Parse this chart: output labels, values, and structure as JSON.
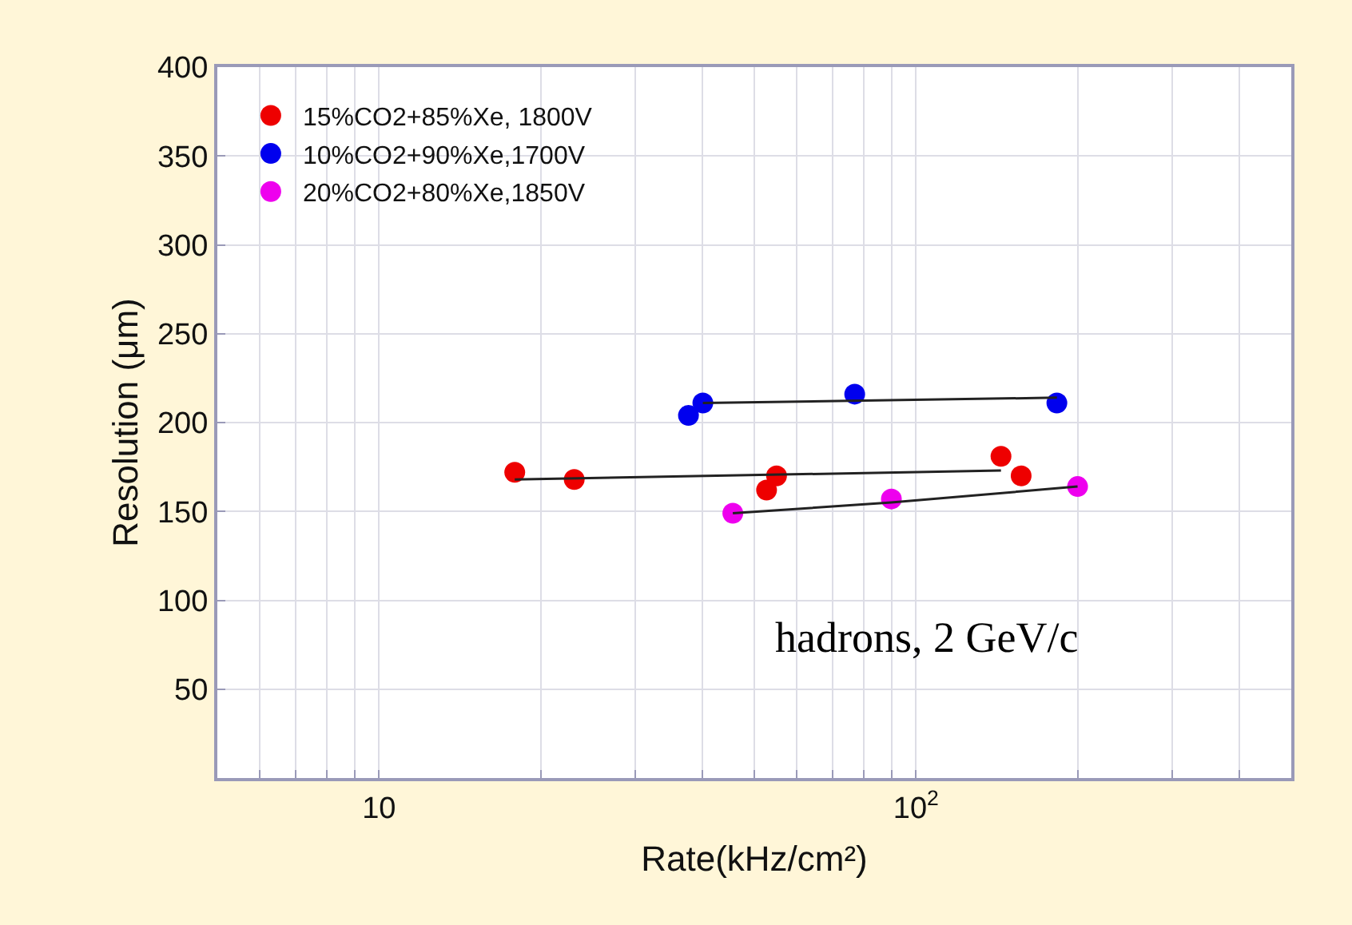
{
  "chart_data": {
    "type": "scatter",
    "xlabel": "Rate(kHz/cm²)",
    "ylabel": "Resolution (μm)",
    "log": "x",
    "grid": true,
    "legend": "top left",
    "marker": "circle",
    "xlim": [
      5,
      500
    ],
    "xticks": [
      {
        "value": 5,
        "label": null
      },
      {
        "value": 6,
        "label": null
      },
      {
        "value": 7,
        "label": null
      },
      {
        "value": 8,
        "label": null
      },
      {
        "value": 9,
        "label": null
      },
      10,
      {
        "value": 20,
        "label": null
      },
      {
        "value": 30,
        "label": null
      },
      {
        "value": 40,
        "label": null
      },
      {
        "value": 50,
        "label": null
      },
      {
        "value": 60,
        "label": null
      },
      {
        "value": 70,
        "label": null
      },
      {
        "value": 80,
        "label": null
      },
      {
        "value": 90,
        "label": null
      },
      {
        "value": 100,
        "label": "10$^{2}$"
      },
      {
        "value": 200,
        "label": null
      },
      {
        "value": 300,
        "label": null
      },
      {
        "value": 400,
        "label": null
      }
    ],
    "ylim": [
      0,
      400
    ],
    "yticks": [
      50,
      100,
      150,
      200,
      250,
      300,
      350,
      400
    ],
    "series": [
      {
        "name": "15%CO2+85%Xe, 1800V",
        "color": "#ee0000",
        "x": [
          17.9,
          23.1,
          52.7,
          55,
          144,
          157
        ],
        "values": [
          172,
          168,
          162,
          170,
          181,
          170
        ]
      },
      {
        "name": "10%CO2+90%Xe,1700V",
        "color": "#0000ee",
        "x": [
          37.7,
          40.1,
          76.9,
          183
        ],
        "values": [
          204,
          211,
          216,
          211
        ]
      },
      {
        "name": "20%CO2+80%Xe,1850V",
        "color": "#ee00ee",
        "x": [
          45.6,
          90,
          200
        ],
        "values": [
          149,
          157,
          164
        ]
      },
      {
        "type": "line",
        "color": "#222222",
        "marker": "none",
        "x": [
          17.9,
          144
        ],
        "values": [
          168,
          173
        ]
      },
      {
        "type": "line",
        "color": "#222222",
        "marker": "none",
        "x": [
          40.1,
          183
        ],
        "values": [
          211,
          214
        ]
      },
      {
        "type": "line",
        "color": "#222222",
        "marker": "none",
        "x": [
          45.6,
          90,
          200
        ],
        "values": [
          149,
          155,
          164
        ]
      }
    ],
    "annotations": [
      "hadrons, 2 GeV/c"
    ]
  }
}
